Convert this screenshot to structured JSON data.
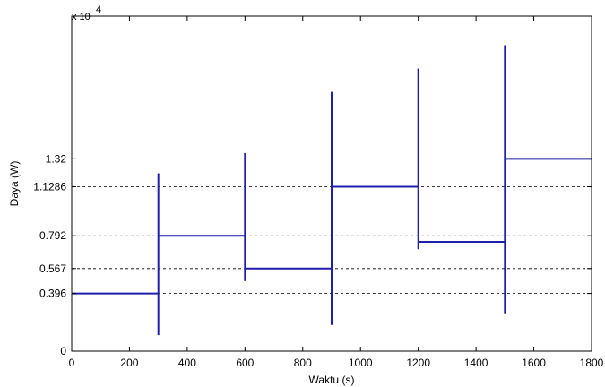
{
  "chart_data": {
    "type": "line",
    "title": "",
    "xlabel": "Waktu (s)",
    "ylabel": "Daya (W)",
    "y_scale_note_base": "x 10",
    "y_scale_note_exp": "4",
    "xlim": [
      0,
      1800
    ],
    "ylim": [
      0,
      2.3
    ],
    "x_ticks": [
      0,
      200,
      400,
      600,
      800,
      1000,
      1200,
      1400,
      1600,
      1800
    ],
    "x_tick_labels": [
      "0",
      "200",
      "400",
      "600",
      "800",
      "1000",
      "1200",
      "1400",
      "1600",
      "1800"
    ],
    "y_ticks": [
      0,
      0.396,
      0.567,
      0.792,
      1.1286,
      1.32
    ],
    "y_tick_labels": [
      "0",
      "0.396",
      "0.567",
      "0.792",
      "1.1286",
      "1.32"
    ],
    "grid": "dashed horizontal lines at y ticks",
    "line_color": "#1f1fa8",
    "series": [
      {
        "x": [
          0,
          300,
          300,
          300,
          300,
          600,
          600,
          600,
          600,
          900,
          900,
          900,
          900,
          1200,
          1200,
          1200,
          1200,
          1500,
          1500,
          1500,
          1500,
          1800
        ],
        "y": [
          0.396,
          0.396,
          0.11,
          1.22,
          0.792,
          0.792,
          1.36,
          0.48,
          0.567,
          0.567,
          0.18,
          1.78,
          1.1286,
          1.1286,
          1.94,
          0.7,
          0.75,
          0.75,
          0.26,
          2.1,
          1.32,
          1.32
        ]
      }
    ]
  }
}
